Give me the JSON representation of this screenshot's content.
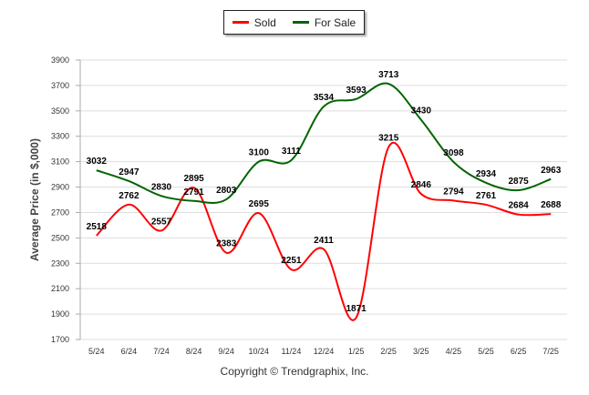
{
  "legend": {
    "sold_label": "Sold",
    "for_sale_label": "For Sale"
  },
  "footer": {
    "copyright": "Copyright © Trendgraphix, Inc."
  },
  "colors": {
    "sold": "#ff0000",
    "for_sale": "#006400",
    "grid": "#dddddd"
  },
  "chart_data": {
    "type": "line",
    "categories": [
      "5/24",
      "6/24",
      "7/24",
      "8/24",
      "9/24",
      "10/24",
      "11/24",
      "12/24",
      "1/25",
      "2/25",
      "3/25",
      "4/25",
      "5/25",
      "6/25",
      "7/25"
    ],
    "series": [
      {
        "name": "Sold",
        "values": [
          2518,
          2762,
          2557,
          2895,
          2383,
          2695,
          2251,
          2411,
          1871,
          3215,
          2846,
          2794,
          2761,
          2684,
          2688
        ]
      },
      {
        "name": "For Sale",
        "values": [
          3032,
          2947,
          2830,
          2791,
          2803,
          3100,
          3111,
          3534,
          3593,
          3713,
          3430,
          3098,
          2934,
          2875,
          2963
        ]
      }
    ],
    "ylabel": "Average Price (in $,000)",
    "xlabel": "",
    "yticks": [
      1700,
      1900,
      2100,
      2300,
      2500,
      2700,
      2900,
      3100,
      3300,
      3500,
      3700,
      3900
    ],
    "ylim": [
      1700,
      3900
    ],
    "grid": true,
    "legend_position": "top-center"
  }
}
